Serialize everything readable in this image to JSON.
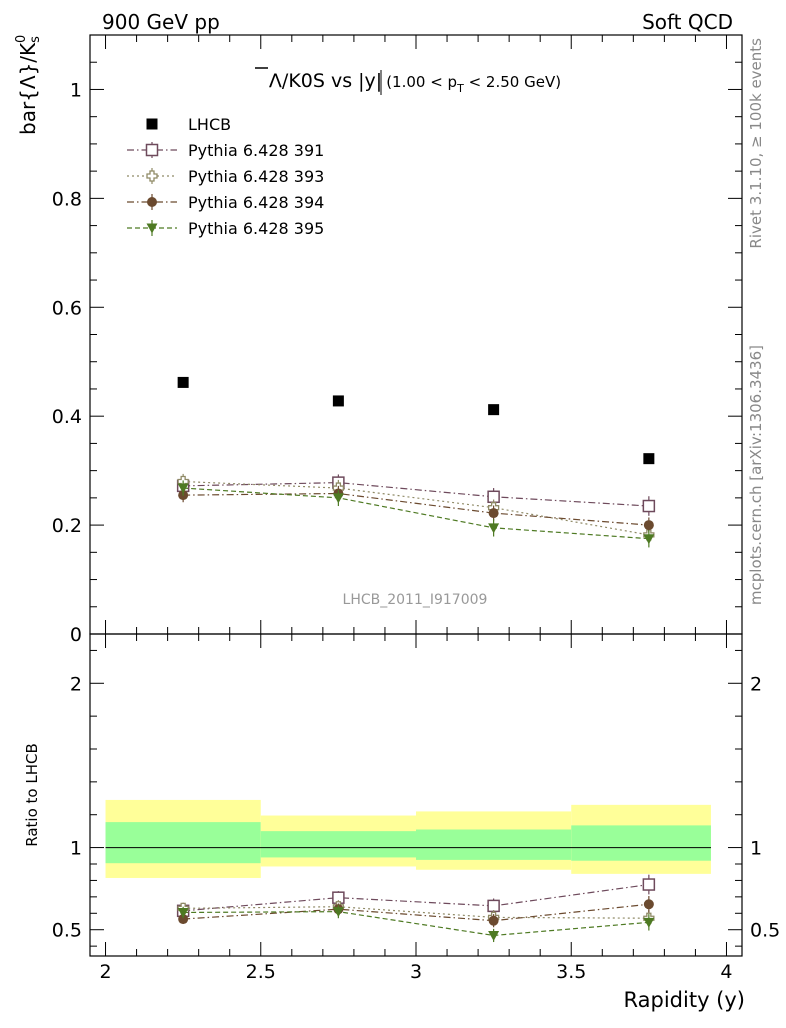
{
  "header": {
    "left": "900 GeV pp",
    "right": "Soft QCD"
  },
  "side": {
    "rivet": "Rivet 3.1.10, ≥ 100k events",
    "mcplots": "mcplots.cern.ch [arXiv:1306.3436]"
  },
  "watermark": "LHCB_2011_I917009",
  "chart_data": [
    {
      "type": "scatter",
      "title": {
        "lambda": "Λ",
        "rest": "/K0S vs |y|",
        "cut_open": "(1.00 < p",
        "cut_sub": "T",
        "cut_close": " < 2.50 GeV)"
      },
      "ylabel": {
        "main": "bar{Λ}/K",
        "sup": "0",
        "sub": "s"
      },
      "ylim": [
        0,
        1.1
      ],
      "y_ticks": [
        {
          "v": 0,
          "label": "0"
        },
        {
          "v": 0.2,
          "label": "0.2"
        },
        {
          "v": 0.4,
          "label": "0.4"
        },
        {
          "v": 0.6,
          "label": "0.6"
        },
        {
          "v": 0.8,
          "label": "0.8"
        },
        {
          "v": 1,
          "label": "1"
        }
      ],
      "x": [
        2.25,
        2.75,
        3.25,
        3.75
      ],
      "legend_placement": "top-left",
      "series": [
        {
          "name": "LHCB",
          "color": "#000000",
          "marker": "filled-square",
          "line": "none",
          "values": [
            0.462,
            0.428,
            0.412,
            0.322
          ],
          "err": [
            0.005,
            0.005,
            0.005,
            0.005
          ]
        },
        {
          "name": "Pythia 6.428 391",
          "color": "#6e4a5c",
          "marker": "open-square",
          "line": "dashdot",
          "values": [
            0.272,
            0.278,
            0.252,
            0.235
          ],
          "err": [
            0.014,
            0.015,
            0.016,
            0.018
          ]
        },
        {
          "name": "Pythia 6.428 393",
          "color": "#8f8a66",
          "marker": "open-cross",
          "line": "dotted",
          "values": [
            0.28,
            0.268,
            0.232,
            0.182
          ],
          "err": [
            0.014,
            0.015,
            0.015,
            0.015
          ]
        },
        {
          "name": "Pythia 6.428 394",
          "color": "#6b4a2f",
          "marker": "filled-circle",
          "line": "dashdot",
          "values": [
            0.255,
            0.258,
            0.222,
            0.2
          ],
          "err": [
            0.013,
            0.014,
            0.014,
            0.014
          ]
        },
        {
          "name": "Pythia 6.428 395",
          "color": "#4e7a23",
          "marker": "filled-triangle-down",
          "line": "dashed",
          "values": [
            0.268,
            0.25,
            0.195,
            0.175
          ],
          "err": [
            0.014,
            0.015,
            0.016,
            0.016
          ]
        }
      ]
    },
    {
      "type": "scatter",
      "ylabel": "Ratio to LHCB",
      "xlabel": "Rapidity (y)",
      "ylim": [
        0.34,
        2.3
      ],
      "xlim": [
        1.95,
        4.05
      ],
      "x_ticks": [
        {
          "v": 2,
          "label": "2"
        },
        {
          "v": 2.5,
          "label": "2.5"
        },
        {
          "v": 3,
          "label": "3"
        },
        {
          "v": 3.5,
          "label": "3.5"
        },
        {
          "v": 4,
          "label": "4"
        }
      ],
      "y_ticks": [
        {
          "v": 0.5,
          "label": "0.5"
        },
        {
          "v": 1,
          "label": "1"
        },
        {
          "v": 2,
          "label": "2"
        }
      ],
      "bands": [
        {
          "x0": 2.0,
          "x1": 2.5,
          "yellow": [
            0.815,
            1.29
          ],
          "green": [
            0.905,
            1.155
          ]
        },
        {
          "x0": 2.5,
          "x1": 3.0,
          "yellow": [
            0.885,
            1.195
          ],
          "green": [
            0.94,
            1.1
          ]
        },
        {
          "x0": 3.0,
          "x1": 3.5,
          "yellow": [
            0.865,
            1.22
          ],
          "green": [
            0.925,
            1.11
          ]
        },
        {
          "x0": 3.5,
          "x1": 3.95,
          "yellow": [
            0.84,
            1.26
          ],
          "green": [
            0.92,
            1.135
          ]
        }
      ],
      "reference": 1,
      "series": [
        {
          "name": "Pythia 6.428 391",
          "values": [
            0.615,
            0.695,
            0.645,
            0.775
          ],
          "err": [
            0.035,
            0.04,
            0.045,
            0.06
          ]
        },
        {
          "name": "Pythia 6.428 393",
          "values": [
            0.63,
            0.64,
            0.575,
            0.57
          ],
          "err": [
            0.035,
            0.04,
            0.045,
            0.05
          ]
        },
        {
          "name": "Pythia 6.428 394",
          "values": [
            0.565,
            0.625,
            0.555,
            0.655
          ],
          "err": [
            0.03,
            0.035,
            0.04,
            0.05
          ]
        },
        {
          "name": "Pythia 6.428 395",
          "values": [
            0.605,
            0.61,
            0.465,
            0.545
          ],
          "err": [
            0.035,
            0.04,
            0.04,
            0.05
          ]
        }
      ]
    }
  ]
}
